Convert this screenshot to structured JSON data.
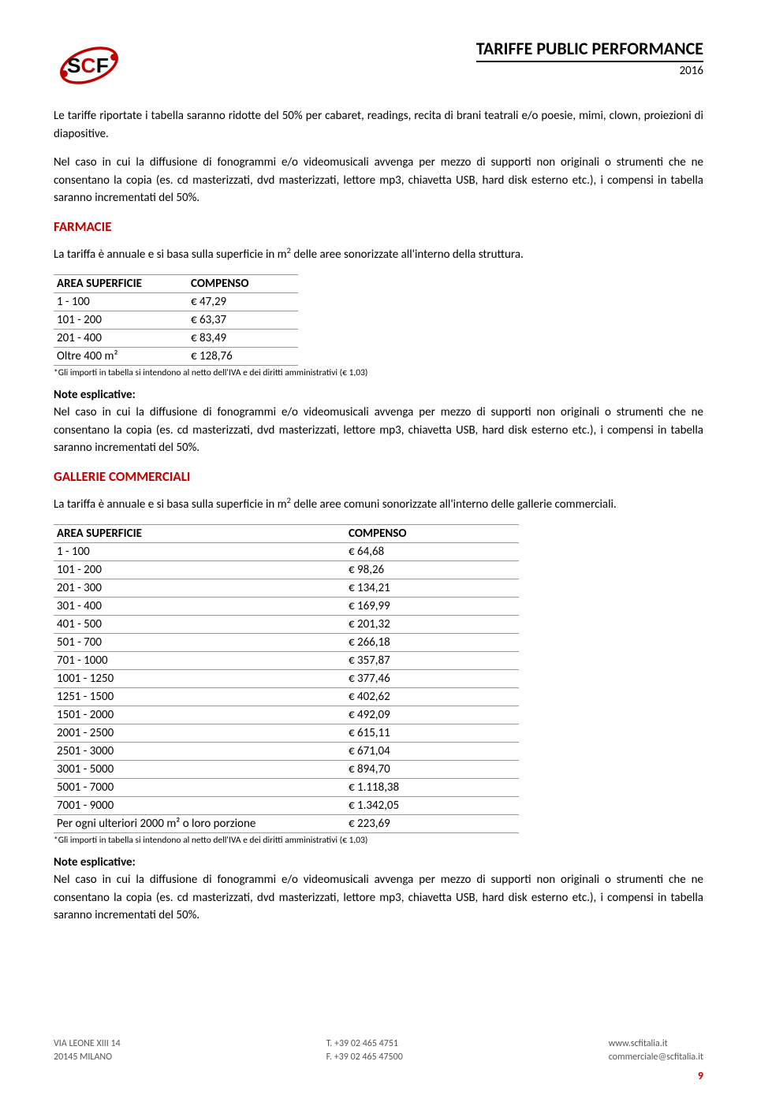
{
  "header": {
    "title": "TARIFFE PUBLIC PERFORMANCE",
    "year": "2016"
  },
  "intro_para1": "Le tariffe riportate i tabella saranno ridotte del 50% per cabaret, readings, recita di brani teatrali e/o poesie, mimi, clown, proiezioni di diapositive.",
  "intro_para2": "Nel caso in cui la diffusione di fonogrammi e/o videomusicali avvenga per mezzo di supporti non originali o strumenti che ne consentano la copia (es. cd masterizzati, dvd masterizzati, lettore mp3, chiavetta USB, hard disk esterno etc.), i compensi in tabella saranno incrementati del 50%.",
  "farmacie": {
    "title": "FARMACIE",
    "intro_pre": "La tariffa è annuale e si basa sulla superficie in m",
    "intro_post": " delle aree sonorizzate all'interno della struttura.",
    "col1": "AREA SUPERFICIE",
    "col2": "COMPENSO",
    "rows": [
      {
        "area": "1 - 100",
        "comp": "€ 47,29"
      },
      {
        "area": "101 - 200",
        "comp": "€ 63,37"
      },
      {
        "area": "201 - 400",
        "comp": "€ 83,49"
      },
      {
        "area": "Oltre 400 m²",
        "comp": "€ 128,76"
      }
    ],
    "footnote": "*Gli importi in tabella si intendono al netto dell'IVA e dei diritti amministrativi (€ 1,03)",
    "note_head": "Note esplicative:",
    "note_body": "Nel caso in cui la diffusione di fonogrammi e/o videomusicali avvenga per mezzo di supporti non originali o strumenti che ne consentano la copia (es. cd masterizzati, dvd masterizzati, lettore mp3, chiavetta USB, hard disk esterno etc.), i compensi in tabella saranno incrementati del 50%."
  },
  "gallerie": {
    "title": "GALLERIE COMMERCIALI",
    "intro_pre": "La tariffa è annuale e si basa sulla superficie in m",
    "intro_post": " delle aree comuni sonorizzate all'interno delle gallerie commerciali.",
    "col1": "AREA SUPERFICIE",
    "col2": "COMPENSO",
    "rows": [
      {
        "area": "1 - 100",
        "comp": "€ 64,68"
      },
      {
        "area": "101 - 200",
        "comp": "€ 98,26"
      },
      {
        "area": "201 - 300",
        "comp": "€ 134,21"
      },
      {
        "area": "301 - 400",
        "comp": "€ 169,99"
      },
      {
        "area": "401 - 500",
        "comp": "€ 201,32"
      },
      {
        "area": "501 - 700",
        "comp": "€ 266,18"
      },
      {
        "area": "701 - 1000",
        "comp": "€ 357,87"
      },
      {
        "area": "1001 - 1250",
        "comp": "€ 377,46"
      },
      {
        "area": "1251 - 1500",
        "comp": "€ 402,62"
      },
      {
        "area": "1501 - 2000",
        "comp": "€ 492,09"
      },
      {
        "area": "2001 - 2500",
        "comp": "€ 615,11"
      },
      {
        "area": "2501 - 3000",
        "comp": "€ 671,04"
      },
      {
        "area": "3001 - 5000",
        "comp": "€ 894,70"
      },
      {
        "area": "5001 - 7000",
        "comp": "€ 1.118,38"
      },
      {
        "area": "7001 - 9000",
        "comp": "€ 1.342,05"
      },
      {
        "area": "Per ogni ulteriori 2000 m² o loro porzione",
        "comp": "€ 223,69"
      }
    ],
    "footnote": "*Gli importi in tabella si intendono al netto dell'IVA e dei diritti amministrativi (€ 1,03)",
    "note_head": "Note esplicative:",
    "note_body": "Nel caso in cui la diffusione di fonogrammi e/o videomusicali avvenga per mezzo di supporti non originali o strumenti che ne consentano la copia (es. cd masterizzati, dvd masterizzati, lettore mp3, chiavetta USB, hard disk esterno etc.), i compensi in tabella saranno incrementati del 50%."
  },
  "footer": {
    "addr1": "VIA LEONE XIII 14",
    "addr2": "20145 MILANO",
    "tel": "T. +39 02 465 4751",
    "fax": "F. +39 02 465 47500",
    "web": "www.scfitalia.it",
    "email": "commerciale@scfitalia.it",
    "page": "9"
  },
  "colors": {
    "accent": "#c00000",
    "text": "#000000",
    "footer_text": "#555555",
    "border": "#999999"
  }
}
